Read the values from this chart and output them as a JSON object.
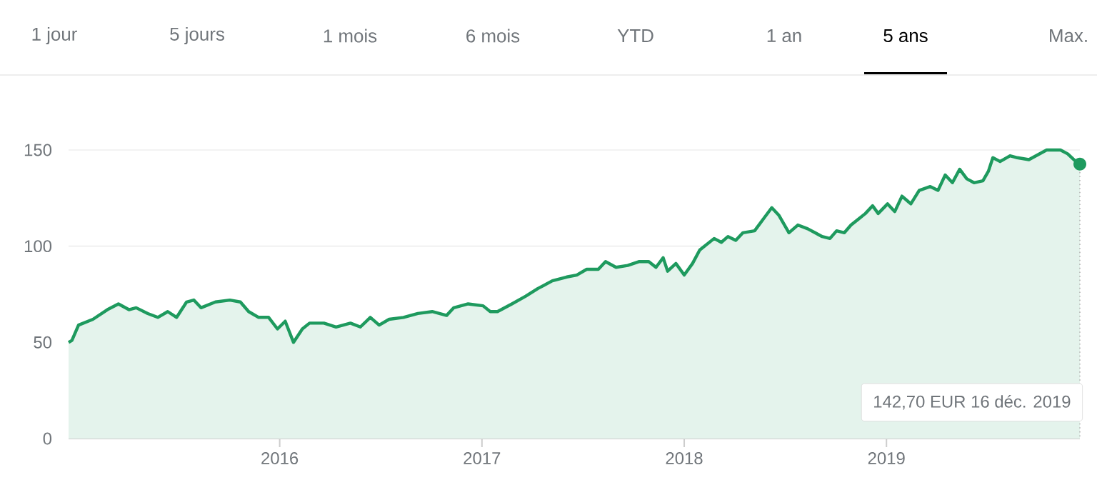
{
  "chart_data": {
    "type": "area",
    "annotations": [
      "1 jour",
      "5 jours",
      "1 mois",
      "6 mois",
      "YTD",
      "1 an",
      "5 ans",
      "Max.",
      "142,70 EUR  16 déc. 2019"
    ],
    "x": [
      "2014-12-16",
      "2014-12-22",
      "2015-01-03",
      "2015-01-29",
      "2015-02-24",
      "2015-03-16",
      "2015-04-04",
      "2015-04-17",
      "2015-05-08",
      "2015-05-26",
      "2015-06-13",
      "2015-06-29",
      "2015-07-17",
      "2015-07-30",
      "2015-08-12",
      "2015-09-07",
      "2015-10-03",
      "2015-10-22",
      "2015-11-06",
      "2015-11-24",
      "2015-12-12",
      "2015-12-28",
      "2016-01-11",
      "2016-01-26",
      "2016-02-11",
      "2016-02-24",
      "2016-03-21",
      "2016-04-12",
      "2016-05-08",
      "2016-05-26",
      "2016-06-13",
      "2016-06-29",
      "2016-07-17",
      "2016-08-12",
      "2016-09-07",
      "2016-10-03",
      "2016-10-29",
      "2016-11-11",
      "2016-12-07",
      "2017-01-03",
      "2017-01-16",
      "2017-01-29",
      "2017-02-24",
      "2017-03-21",
      "2017-04-12",
      "2017-05-08",
      "2017-06-03",
      "2017-06-21",
      "2017-07-09",
      "2017-07-30",
      "2017-08-12",
      "2017-08-31",
      "2017-09-21",
      "2017-10-12",
      "2017-10-29",
      "2017-11-11",
      "2017-11-24",
      "2017-12-02",
      "2017-12-17",
      "2018-01-01",
      "2018-01-16",
      "2018-01-29",
      "2018-02-24",
      "2018-03-09",
      "2018-03-21",
      "2018-04-04",
      "2018-04-17",
      "2018-05-08",
      "2018-05-26",
      "2018-06-08",
      "2018-06-21",
      "2018-07-09",
      "2018-07-25",
      "2018-08-12",
      "2018-08-25",
      "2018-09-07",
      "2018-09-21",
      "2018-10-03",
      "2018-10-17",
      "2018-10-29",
      "2018-11-11",
      "2018-11-24",
      "2018-12-07",
      "2018-12-17",
      "2019-01-03",
      "2019-01-16",
      "2019-01-29",
      "2019-02-14",
      "2019-03-01",
      "2019-03-21",
      "2019-04-04",
      "2019-04-17",
      "2019-04-30",
      "2019-05-13",
      "2019-05-26",
      "2019-06-08",
      "2019-06-24",
      "2019-07-04",
      "2019-07-12",
      "2019-07-25",
      "2019-08-12",
      "2019-08-25",
      "2019-09-15",
      "2019-10-17",
      "2019-11-11",
      "2019-11-24",
      "2019-12-05",
      "2019-12-16"
    ],
    "series": [
      {
        "color": "#1e9a5e",
        "values": [
          50,
          51,
          59,
          62,
          67,
          70,
          67,
          68,
          65,
          63,
          66,
          63,
          71,
          72,
          68,
          71,
          72,
          71,
          66,
          63,
          63,
          57,
          61,
          50,
          57,
          60,
          60,
          58,
          60,
          58,
          63,
          59,
          62,
          63,
          65,
          66,
          64,
          68,
          70,
          69,
          66,
          66,
          70,
          74,
          78,
          82,
          84,
          85,
          88,
          88,
          92,
          89,
          90,
          92,
          92,
          89,
          94,
          87,
          91,
          85,
          91,
          98,
          104,
          102,
          105,
          103,
          107,
          108,
          115,
          120,
          116,
          107,
          111,
          109,
          107,
          105,
          104,
          108,
          107,
          111,
          114,
          117,
          121,
          117,
          122,
          118,
          126,
          122,
          129,
          131,
          129,
          137,
          133,
          140,
          135,
          133,
          134,
          139,
          146,
          144,
          147,
          146,
          145,
          150,
          150,
          148,
          145,
          142.7
        ]
      }
    ],
    "xlim": [
      "2014-12-16",
      "2019-12-16"
    ],
    "ylim": [
      0,
      150
    ],
    "xticks": [
      {
        "value": "2016-01-01",
        "label": "2016"
      },
      {
        "value": "2017-01-01",
        "label": "2017"
      },
      {
        "value": "2018-01-01",
        "label": "2018"
      },
      {
        "value": "2019-01-01",
        "label": "2019"
      }
    ],
    "yticks": [
      0,
      50,
      100,
      150
    ],
    "grid": "y"
  }
}
